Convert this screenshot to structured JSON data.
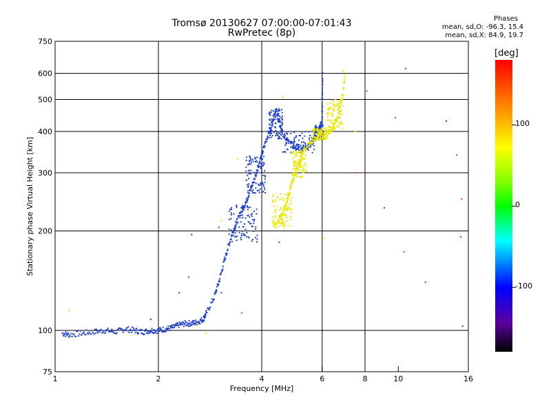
{
  "header": {
    "title": "Tromsø 20130627 07:00:00-07:01:43",
    "subtitle": "RwPretec (8p)",
    "stats_heading": "Phases",
    "stats_o": "mean, sd,O: -96.3, 15.4",
    "stats_x": "mean, sd,X:  84.9, 19.7"
  },
  "colorbar": {
    "label": "[deg]",
    "ticks": [
      "100",
      "0",
      "-100"
    ],
    "tick_values": [
      100,
      0,
      -100
    ],
    "range": [
      -180,
      180
    ]
  },
  "chart_data": {
    "type": "scatter",
    "xlabel": "Frequency [MHz]",
    "ylabel": "Stationary phase Virtual Height [km]",
    "xscale": "log",
    "yscale": "log",
    "xlim": [
      1,
      16
    ],
    "ylim": [
      75,
      750
    ],
    "xticks": [
      1,
      2,
      4,
      6,
      8,
      10,
      16
    ],
    "xtick_labels": [
      "1",
      "2",
      "4",
      "6",
      "8",
      "10",
      "16"
    ],
    "yticks": [
      75,
      100,
      200,
      300,
      400,
      500,
      600,
      750
    ],
    "ytick_labels": [
      "75",
      "100",
      "200",
      "300",
      "400",
      "500",
      "600",
      "750"
    ],
    "grid_x": [
      2,
      4,
      6,
      8
    ],
    "grid_y": [
      100,
      200,
      300,
      400,
      500,
      600
    ],
    "series": [
      {
        "mode": "O",
        "color": "#1f3fd0",
        "trace_points": [
          [
            1.05,
            98
          ],
          [
            1.1,
            97
          ],
          [
            1.2,
            98
          ],
          [
            1.3,
            99
          ],
          [
            1.4,
            100
          ],
          [
            1.5,
            99
          ],
          [
            1.6,
            101
          ],
          [
            1.7,
            100
          ],
          [
            1.8,
            99
          ],
          [
            1.9,
            100
          ],
          [
            2.0,
            100
          ],
          [
            2.1,
            101
          ],
          [
            2.2,
            102
          ],
          [
            2.3,
            104
          ],
          [
            2.4,
            105
          ],
          [
            2.5,
            105
          ],
          [
            2.6,
            106
          ],
          [
            2.7,
            108
          ],
          [
            2.75,
            112
          ],
          [
            2.9,
            125
          ],
          [
            3.0,
            140
          ],
          [
            3.1,
            160
          ],
          [
            3.2,
            180
          ],
          [
            3.3,
            200
          ],
          [
            3.4,
            215
          ],
          [
            3.5,
            230
          ],
          [
            3.6,
            245
          ],
          [
            3.7,
            265
          ],
          [
            3.8,
            285
          ],
          [
            3.9,
            310
          ],
          [
            4.0,
            340
          ],
          [
            4.1,
            370
          ],
          [
            4.2,
            400
          ],
          [
            4.3,
            430
          ],
          [
            4.4,
            470
          ],
          [
            4.5,
            430
          ],
          [
            4.6,
            395
          ],
          [
            4.8,
            370
          ],
          [
            5.0,
            360
          ],
          [
            5.2,
            355
          ],
          [
            5.4,
            358
          ],
          [
            5.6,
            370
          ],
          [
            5.8,
            395
          ],
          [
            6.0,
            430
          ],
          [
            6.0,
            500
          ],
          [
            6.02,
            600
          ]
        ],
        "cloud": [
          {
            "f": [
              3.2,
              3.9
            ],
            "h": [
              185,
              240
            ]
          },
          {
            "f": [
              3.6,
              4.1
            ],
            "h": [
              260,
              340
            ]
          },
          {
            "f": [
              4.2,
              4.6
            ],
            "h": [
              380,
              470
            ]
          },
          {
            "f": [
              4.6,
              5.7
            ],
            "h": [
              345,
              400
            ]
          },
          {
            "f": [
              5.7,
              6.05
            ],
            "h": [
              380,
              420
            ]
          }
        ],
        "scatter_points": [
          [
            1.9,
            108
          ],
          [
            2.3,
            130
          ],
          [
            2.45,
            145
          ],
          [
            2.5,
            195
          ],
          [
            3.0,
            205
          ],
          [
            3.05,
            130
          ],
          [
            4.5,
            185
          ],
          [
            10.5,
            620
          ],
          [
            12.0,
            140
          ],
          [
            13.8,
            430
          ],
          [
            9.1,
            235
          ],
          [
            15.4,
            103
          ]
        ]
      },
      {
        "mode": "X",
        "color": "#e8e800",
        "trace_points": [
          [
            4.3,
            210
          ],
          [
            4.5,
            215
          ],
          [
            4.6,
            225
          ],
          [
            4.7,
            240
          ],
          [
            4.8,
            260
          ],
          [
            4.9,
            280
          ],
          [
            5.0,
            295
          ],
          [
            5.1,
            315
          ],
          [
            5.2,
            330
          ],
          [
            5.3,
            350
          ],
          [
            5.5,
            370
          ],
          [
            5.7,
            380
          ],
          [
            5.9,
            385
          ],
          [
            6.1,
            390
          ],
          [
            6.3,
            400
          ],
          [
            6.5,
            420
          ],
          [
            6.7,
            450
          ],
          [
            6.8,
            490
          ],
          [
            6.9,
            520
          ],
          [
            7.0,
            600
          ]
        ],
        "cloud": [
          {
            "f": [
              4.3,
              4.9
            ],
            "h": [
              205,
              260
            ]
          },
          {
            "f": [
              4.9,
              5.4
            ],
            "h": [
              290,
              350
            ]
          },
          {
            "f": [
              5.6,
              6.2
            ],
            "h": [
              375,
              410
            ]
          },
          {
            "f": [
              6.2,
              6.9
            ],
            "h": [
              400,
              500
            ]
          }
        ],
        "scatter_points": [
          [
            1.1,
            115
          ],
          [
            3.05,
            215
          ],
          [
            3.4,
            330
          ],
          [
            4.6,
            510
          ],
          [
            6.1,
            190
          ],
          [
            6.9,
            610
          ],
          [
            7.5,
            400
          ],
          [
            2.75,
            98
          ],
          [
            2.6,
            105
          ]
        ]
      },
      {
        "mode": "other",
        "color": "#ff4000",
        "scatter_points": [
          [
            8.1,
            530
          ],
          [
            7.6,
            300
          ],
          [
            14.8,
            340
          ],
          [
            15.2,
            192
          ],
          [
            10.4,
            173
          ],
          [
            9.8,
            440
          ],
          [
            15.3,
            250
          ],
          [
            3.5,
            113
          ]
        ]
      }
    ]
  }
}
